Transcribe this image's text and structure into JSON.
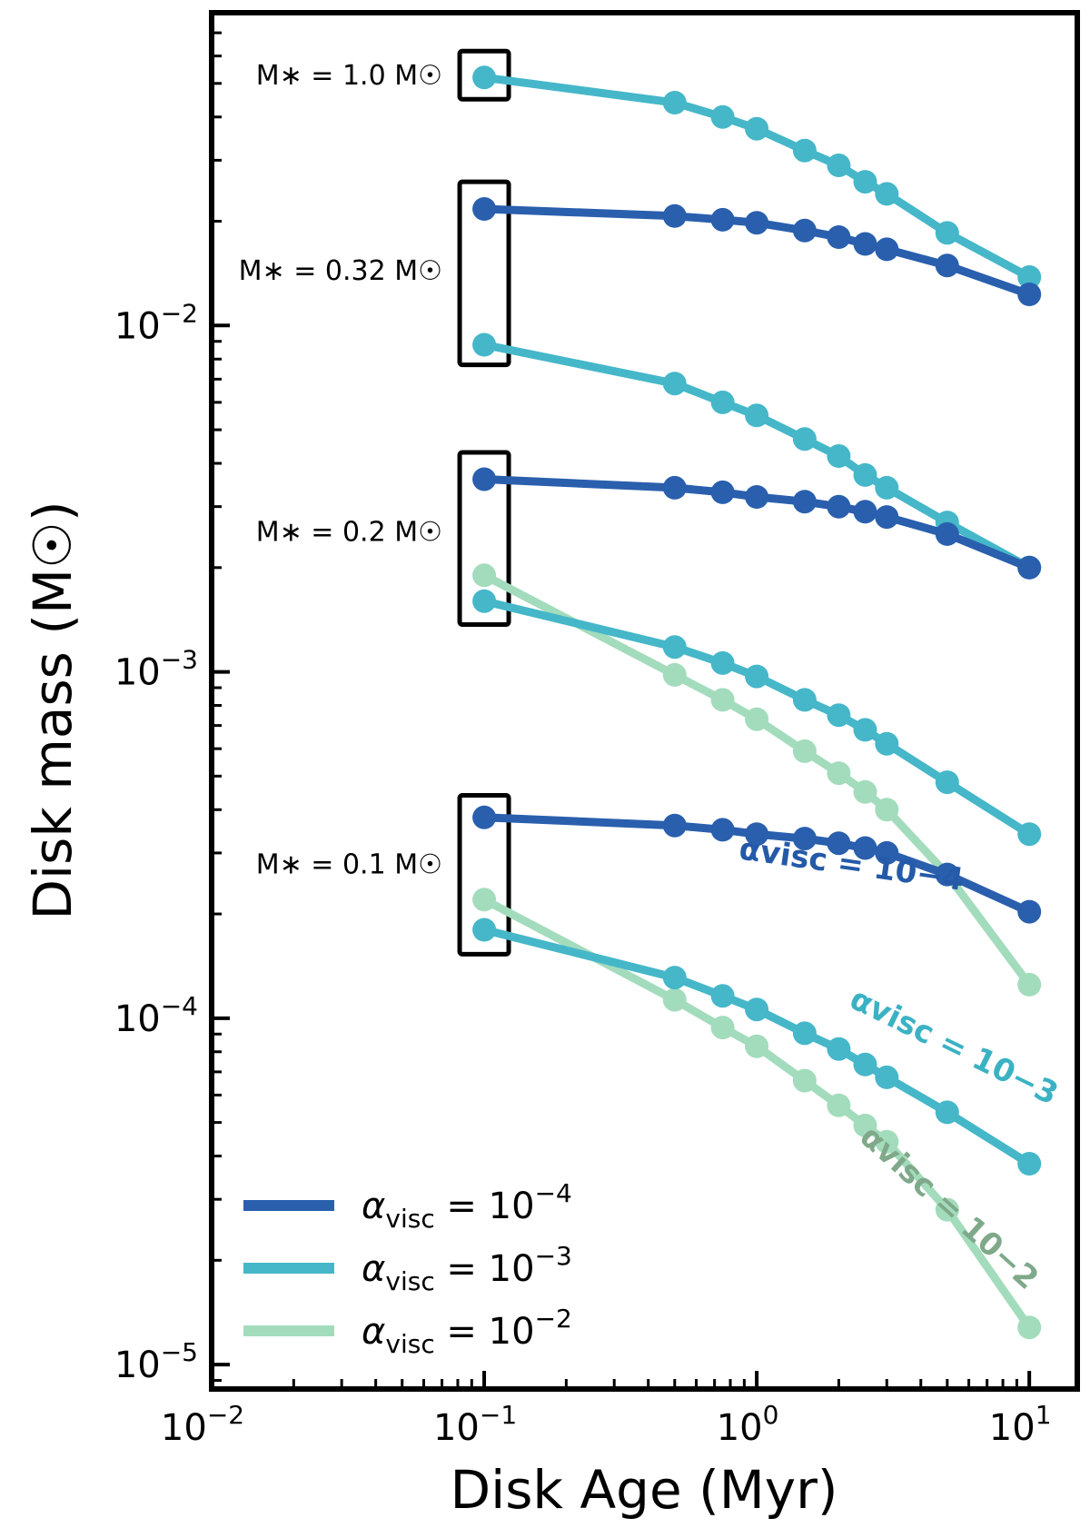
{
  "chart_data": {
    "type": "line",
    "xscale": "log",
    "yscale": "log",
    "xlim": [
      0.01,
      15
    ],
    "ylim": [
      8.5e-06,
      0.08
    ],
    "xlabel": "Disk Age (Myr)",
    "ylabel": "Disk mass (M☉)",
    "x_ticks": [
      {
        "value": 0.01,
        "base": "10",
        "exp": "−2"
      },
      {
        "value": 0.1,
        "base": "10",
        "exp": "−1"
      },
      {
        "value": 1,
        "base": "10",
        "exp": "0"
      },
      {
        "value": 10,
        "base": "10",
        "exp": "1"
      }
    ],
    "y_ticks": [
      {
        "value": 1e-05,
        "base": "10",
        "exp": "−5"
      },
      {
        "value": 0.0001,
        "base": "10",
        "exp": "−4"
      },
      {
        "value": 0.001,
        "base": "10",
        "exp": "−3"
      },
      {
        "value": 0.01,
        "base": "10",
        "exp": "−2"
      }
    ],
    "x": [
      0.1,
      0.5,
      0.75,
      1.0,
      1.5,
      2.0,
      2.5,
      3.0,
      5.0,
      10.0
    ],
    "colors": {
      "alpha_1e-4": "#2a5fad",
      "alpha_1e-3": "#45b7c9",
      "alpha_1e-2": "#a3dcbc"
    },
    "series": [
      {
        "name": "M=1.0, αvisc=1e-3",
        "alpha": "1e-3",
        "values": [
          0.052,
          0.044,
          0.04,
          0.037,
          0.032,
          0.029,
          0.026,
          0.024,
          0.0185,
          0.0138
        ]
      },
      {
        "name": "M=0.32, αvisc=1e-4",
        "alpha": "1e-4",
        "values": [
          0.0217,
          0.0207,
          0.0202,
          0.0198,
          0.0188,
          0.018,
          0.0172,
          0.0166,
          0.0149,
          0.0123
        ]
      },
      {
        "name": "M=0.32, αvisc=1e-3",
        "alpha": "1e-3",
        "values": [
          0.0088,
          0.0068,
          0.006,
          0.0055,
          0.0047,
          0.0042,
          0.0037,
          0.0034,
          0.0027,
          0.002
        ]
      },
      {
        "name": "M=0.2, αvisc=1e-4",
        "alpha": "1e-4",
        "values": [
          0.0036,
          0.0034,
          0.0033,
          0.0032,
          0.0031,
          0.003,
          0.0029,
          0.0028,
          0.0025,
          0.002
        ]
      },
      {
        "name": "M=0.2, αvisc=1e-3",
        "alpha": "1e-3",
        "values": [
          0.0016,
          0.00118,
          0.00106,
          0.00097,
          0.00083,
          0.00075,
          0.00068,
          0.00062,
          0.00048,
          0.00034
        ]
      },
      {
        "name": "M=0.2, αvisc=1e-2",
        "alpha": "1e-2",
        "values": [
          0.0019,
          0.00098,
          0.00083,
          0.00073,
          0.00059,
          0.00051,
          0.00045,
          0.0004,
          0.00026,
          0.000125
        ]
      },
      {
        "name": "M=0.1, αvisc=1e-4",
        "alpha": "1e-4",
        "values": [
          0.00038,
          0.00036,
          0.00035,
          0.00034,
          0.00033,
          0.00032,
          0.00031,
          0.0003,
          0.00026,
          0.000203
        ]
      },
      {
        "name": "M=0.1, αvisc=1e-3",
        "alpha": "1e-3",
        "values": [
          0.00018,
          0.000131,
          0.000116,
          0.000106,
          9.05e-05,
          8.15e-05,
          7.35e-05,
          6.75e-05,
          5.35e-05,
          3.8e-05
        ]
      },
      {
        "name": "M=0.1, αvisc=1e-2",
        "alpha": "1e-2",
        "values": [
          0.00022,
          0.000113,
          9.4e-05,
          8.3e-05,
          6.6e-05,
          5.6e-05,
          4.9e-05,
          4.4e-05,
          2.8e-05,
          1.28e-05
        ]
      }
    ],
    "mass_labels": [
      {
        "text": "M∗ = 1.0 M☉",
        "y": 0.053
      },
      {
        "text": "M∗ = 0.32 M☉",
        "y": 0.0145
      },
      {
        "text": "M∗ = 0.2 M☉",
        "y": 0.00255
      },
      {
        "text": "M∗ = 0.1 M☉",
        "y": 0.00028
      }
    ],
    "highlight_boxes": [
      {
        "x": 0.1,
        "ymin": 0.045,
        "ymax": 0.062
      },
      {
        "x": 0.1,
        "ymin": 0.0077,
        "ymax": 0.026
      },
      {
        "x": 0.1,
        "ymin": 0.00137,
        "ymax": 0.0043
      },
      {
        "x": 0.1,
        "ymin": 0.000153,
        "ymax": 0.00044
      }
    ],
    "curve_labels": [
      {
        "alpha": "1e-4",
        "text": "αvisc = 10−4",
        "x": 2.2,
        "y": 0.00026,
        "rotation": 8
      },
      {
        "alpha": "1e-3",
        "text": "αvisc = 10−3",
        "x": 5.1,
        "y": 7.8e-05,
        "rotation": 26
      },
      {
        "alpha": "1e-2",
        "text": "αvisc = 10−2",
        "x": 4.8,
        "y": 2.7e-05,
        "rotation": 42
      }
    ],
    "legend": {
      "position": "lower-left",
      "entries": [
        {
          "alpha": "1e-4",
          "label_base": "α",
          "label_sub": "visc",
          "label_eq": " = 10",
          "label_exp": "−4"
        },
        {
          "alpha": "1e-3",
          "label_base": "α",
          "label_sub": "visc",
          "label_eq": " = 10",
          "label_exp": "−3"
        },
        {
          "alpha": "1e-2",
          "label_base": "α",
          "label_sub": "visc",
          "label_eq": " = 10",
          "label_exp": "−2"
        }
      ]
    }
  }
}
